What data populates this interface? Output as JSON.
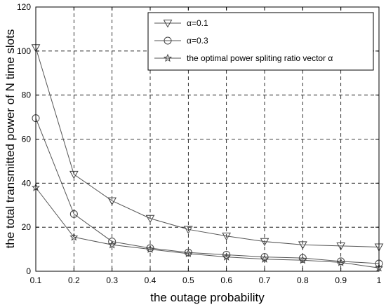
{
  "chart_data": {
    "type": "line",
    "xlabel": "the outage probability",
    "ylabel": "the total transmitted power of N time slots",
    "x": [
      0.1,
      0.2,
      0.3,
      0.4,
      0.5,
      0.6,
      0.7,
      0.8,
      0.9,
      1.0
    ],
    "xticks": [
      "0.1",
      "0.2",
      "0.3",
      "0.4",
      "0.5",
      "0.6",
      "0.7",
      "0.8",
      "0.9",
      "1"
    ],
    "yticks": [
      "0",
      "20",
      "40",
      "60",
      "80",
      "100",
      "120"
    ],
    "xlim": [
      0.1,
      1.0
    ],
    "ylim": [
      0,
      120
    ],
    "grid": true,
    "legend_position": "top-right",
    "series": [
      {
        "name": "α=0.1",
        "marker": "triangle-down",
        "values": [
          101.5,
          44,
          32,
          24,
          19,
          16,
          13.5,
          12,
          11.5,
          11
        ]
      },
      {
        "name": "α=0.3",
        "marker": "circle",
        "values": [
          69.5,
          26,
          13.5,
          10.5,
          8.5,
          7.5,
          6.5,
          6,
          4.5,
          3.5
        ]
      },
      {
        "name": "the optimal power spliting ratio vector α",
        "marker": "star",
        "values": [
          38,
          15.5,
          12,
          10,
          8,
          6.5,
          5.5,
          5,
          4,
          1.5
        ]
      }
    ]
  }
}
